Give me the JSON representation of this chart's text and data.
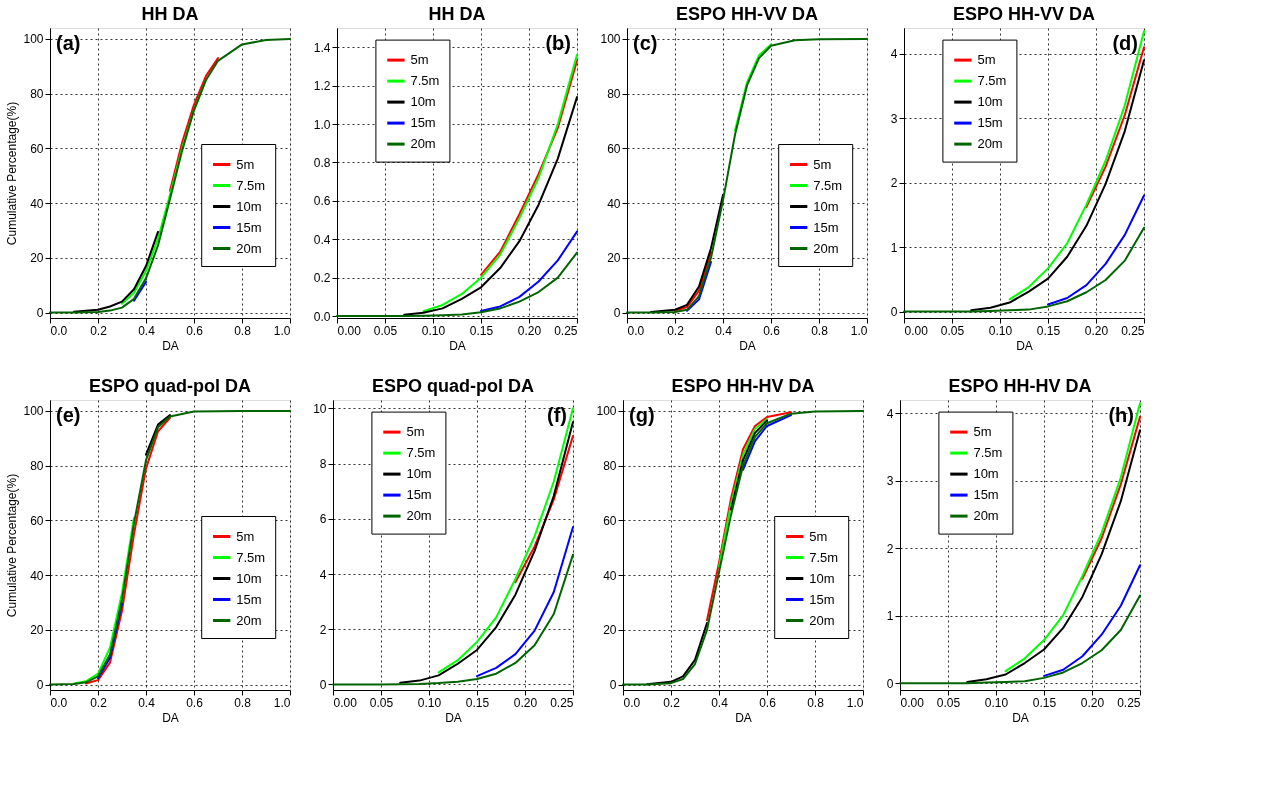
{
  "chart_data": [
    {
      "type": "line",
      "title": "HH DA",
      "xlabel": "DA",
      "ylabel": "Cumulative Percentage(%)",
      "annotations": [
        "(a)"
      ],
      "legend": "right",
      "grid": true,
      "xlim": [
        0,
        1
      ],
      "ylim": [
        -2,
        104
      ],
      "xticks": [
        {
          "value": 0,
          "label": "0.0"
        },
        0.2,
        0.4,
        0.6,
        0.8,
        {
          "value": 1,
          "label": "1.0"
        }
      ],
      "yticks": [
        0,
        20,
        40,
        60,
        80,
        100
      ],
      "x": [
        0,
        0.1,
        0.2,
        0.25,
        0.3,
        0.35,
        0.4,
        0.45,
        0.5,
        0.55,
        0.6,
        0.65,
        0.7,
        0.8,
        0.9,
        1.0
      ],
      "series": [
        {
          "name": "5m",
          "color": "#ff0000",
          "values": [
            null,
            null,
            null,
            null,
            null,
            null,
            null,
            null,
            44.5,
            62,
            76,
            86.5,
            93,
            null,
            null,
            null
          ]
        },
        {
          "name": "7.5m",
          "color": "#00ff00",
          "values": [
            null,
            null,
            null,
            null,
            3.2,
            7.2,
            15.2,
            27,
            43,
            60,
            74,
            85,
            null,
            null,
            null,
            null
          ]
        },
        {
          "name": "10m",
          "color": "#000000",
          "values": [
            null,
            0.3,
            1,
            2.2,
            4,
            8.5,
            17,
            29.5,
            null,
            null,
            null,
            null,
            null,
            null,
            null,
            null
          ]
        },
        {
          "name": "15m",
          "color": "#0000ff",
          "values": [
            null,
            null,
            null,
            null,
            null,
            4.3,
            11.2,
            null,
            null,
            null,
            null,
            null,
            null,
            null,
            null,
            null
          ]
        },
        {
          "name": "20m",
          "color": "#006400",
          "values": [
            0,
            0,
            0.2,
            0.7,
            1.8,
            5,
            12.5,
            24.5,
            41.5,
            59,
            74,
            85,
            92,
            98,
            99.6,
            100
          ]
        }
      ]
    },
    {
      "type": "line",
      "title": "HH DA",
      "xlabel": "DA",
      "annotations": [
        "(b)"
      ],
      "legend": "top left",
      "grid": true,
      "xlim": [
        0,
        0.25
      ],
      "ylim": [
        -0.01,
        1.5
      ],
      "xticks": [
        {
          "value": 0,
          "label": "0.00"
        },
        0.05,
        {
          "value": 0.1,
          "label": "0.10"
        },
        0.15,
        {
          "value": 0.2,
          "label": "0.20"
        },
        0.25
      ],
      "yticks": [
        {
          "value": 0,
          "label": "0.0"
        },
        0.2,
        0.4,
        0.6,
        0.8,
        {
          "value": 1,
          "label": "1.0"
        },
        1.2,
        1.4
      ],
      "x": [
        0,
        0.03,
        0.05,
        0.07,
        0.09,
        0.11,
        0.13,
        0.15,
        0.17,
        0.19,
        0.21,
        0.23,
        0.25
      ],
      "series": [
        {
          "name": "5m",
          "color": "#ff0000",
          "values": [
            null,
            null,
            null,
            null,
            null,
            null,
            null,
            0.215,
            0.335,
            0.53,
            0.74,
            0.98,
            1.33
          ]
        },
        {
          "name": "7.5m",
          "color": "#00ff00",
          "values": [
            null,
            null,
            null,
            null,
            0.025,
            0.058,
            0.115,
            0.2,
            0.32,
            0.51,
            0.72,
            1.0,
            1.36
          ]
        },
        {
          "name": "10m",
          "color": "#000000",
          "values": [
            null,
            null,
            null,
            0.007,
            0.017,
            0.04,
            0.09,
            0.15,
            0.25,
            0.39,
            0.58,
            0.82,
            1.14
          ]
        },
        {
          "name": "15m",
          "color": "#0000ff",
          "values": [
            null,
            null,
            null,
            null,
            null,
            null,
            null,
            0.026,
            0.05,
            0.1,
            0.18,
            0.29,
            0.44
          ]
        },
        {
          "name": "20m",
          "color": "#006400",
          "values": [
            0,
            0,
            0,
            0.001,
            0.002,
            0.004,
            0.008,
            0.02,
            0.04,
            0.075,
            0.125,
            0.2,
            0.33
          ]
        }
      ]
    },
    {
      "type": "line",
      "title": "ESPO HH-VV DA",
      "xlabel": "DA",
      "annotations": [
        "(c)"
      ],
      "legend": "right",
      "grid": true,
      "xlim": [
        0,
        1
      ],
      "ylim": [
        -2,
        104
      ],
      "xticks": [
        {
          "value": 0,
          "label": "0.0"
        },
        0.2,
        0.4,
        0.6,
        0.8,
        {
          "value": 1,
          "label": "1.0"
        }
      ],
      "yticks": [
        0,
        20,
        40,
        60,
        80,
        100
      ],
      "x": [
        0,
        0.1,
        0.2,
        0.25,
        0.3,
        0.35,
        0.4,
        0.45,
        0.5,
        0.55,
        0.6,
        0.7,
        0.8,
        1.0
      ],
      "series": [
        {
          "name": "5m",
          "color": "#ff0000",
          "values": [
            null,
            null,
            0.6,
            2,
            8,
            22,
            null,
            null,
            null,
            null,
            null,
            null,
            null,
            null
          ]
        },
        {
          "name": "7.5m",
          "color": "#00ff00",
          "values": [
            null,
            null,
            null,
            null,
            null,
            null,
            null,
            66.5,
            84,
            94,
            98,
            null,
            null,
            null
          ]
        },
        {
          "name": "10m",
          "color": "#000000",
          "values": [
            null,
            0.2,
            1,
            2.8,
            9.5,
            23.5,
            43,
            null,
            null,
            null,
            null,
            null,
            null,
            null
          ]
        },
        {
          "name": "15m",
          "color": "#0000ff",
          "values": [
            null,
            null,
            null,
            0.6,
            4.8,
            18.5,
            null,
            null,
            null,
            null,
            null,
            null,
            null,
            null
          ]
        },
        {
          "name": "20m",
          "color": "#006400",
          "values": [
            0,
            0,
            0.2,
            1,
            6,
            20,
            41,
            65,
            83,
            93,
            97.5,
            99.5,
            99.9,
            100
          ]
        }
      ]
    },
    {
      "type": "line",
      "title": "ESPO HH-VV DA",
      "xlabel": "DA",
      "annotations": [
        "(d)"
      ],
      "legend": "top left",
      "grid": true,
      "xlim": [
        0,
        0.25
      ],
      "ylim": [
        -0.1,
        4.4
      ],
      "xticks": [
        {
          "value": 0,
          "label": "0.00"
        },
        0.05,
        {
          "value": 0.1,
          "label": "0.10"
        },
        0.15,
        {
          "value": 0.2,
          "label": "0.20"
        },
        0.25
      ],
      "yticks": [
        0,
        1,
        2,
        3,
        4
      ],
      "x": [
        0,
        0.03,
        0.05,
        0.07,
        0.09,
        0.11,
        0.13,
        0.15,
        0.17,
        0.19,
        0.21,
        0.23,
        0.25
      ],
      "series": [
        {
          "name": "5m",
          "color": "#ff0000",
          "values": [
            null,
            null,
            null,
            null,
            null,
            null,
            null,
            null,
            null,
            1.62,
            2.25,
            3.05,
            4.1
          ]
        },
        {
          "name": "7.5m",
          "color": "#00ff00",
          "values": [
            null,
            null,
            null,
            null,
            null,
            0.19,
            0.38,
            0.67,
            1.06,
            1.66,
            2.34,
            3.2,
            4.35
          ]
        },
        {
          "name": "10m",
          "color": "#000000",
          "values": [
            null,
            null,
            null,
            0.02,
            0.06,
            0.14,
            0.31,
            0.51,
            0.85,
            1.33,
            1.98,
            2.8,
            3.9
          ]
        },
        {
          "name": "15m",
          "color": "#0000ff",
          "values": [
            null,
            null,
            null,
            null,
            null,
            null,
            null,
            0.11,
            0.21,
            0.41,
            0.74,
            1.19,
            1.8
          ]
        },
        {
          "name": "20m",
          "color": "#006400",
          "values": [
            0,
            0,
            0,
            0,
            0.01,
            0.02,
            0.03,
            0.08,
            0.16,
            0.3,
            0.49,
            0.79,
            1.3
          ]
        }
      ]
    },
    {
      "type": "line",
      "title": "ESPO quad-pol DA",
      "xlabel": "DA",
      "ylabel": "Cumulative Percentage(%)",
      "annotations": [
        "(e)"
      ],
      "legend": "right",
      "grid": true,
      "xlim": [
        0,
        1
      ],
      "ylim": [
        -2,
        104
      ],
      "xticks": [
        {
          "value": 0,
          "label": "0.0"
        },
        0.2,
        0.4,
        0.6,
        0.8,
        {
          "value": 1,
          "label": "1.0"
        }
      ],
      "yticks": [
        0,
        20,
        40,
        60,
        80,
        100
      ],
      "x": [
        0,
        0.1,
        0.15,
        0.2,
        0.25,
        0.3,
        0.35,
        0.4,
        0.45,
        0.5,
        0.6,
        0.8,
        1.0
      ],
      "series": [
        {
          "name": "5m",
          "color": "#ff0000",
          "values": [
            null,
            null,
            0.4,
            1.6,
            8,
            27,
            55,
            79,
            92.5,
            97.5,
            null,
            null,
            null
          ]
        },
        {
          "name": "7.5m",
          "color": "#00ff00",
          "values": [
            null,
            0.4,
            1.2,
            4,
            13.5,
            33.5,
            61,
            null,
            null,
            null,
            null,
            null,
            null
          ]
        },
        {
          "name": "10m",
          "color": "#000000",
          "values": [
            null,
            null,
            null,
            null,
            null,
            null,
            null,
            84,
            95,
            98.5,
            null,
            null,
            null
          ]
        },
        {
          "name": "15m",
          "color": "#0000ff",
          "values": [
            null,
            null,
            null,
            2.3,
            9.8,
            29.5,
            null,
            null,
            null,
            null,
            null,
            null,
            null
          ]
        },
        {
          "name": "20m",
          "color": "#006400",
          "values": [
            0,
            0.2,
            0.8,
            3,
            11,
            31,
            59,
            82,
            94,
            98,
            99.8,
            100,
            100
          ]
        }
      ]
    },
    {
      "type": "line",
      "title": "ESPO quad-pol DA",
      "xlabel": "DA",
      "annotations": [
        "(f)"
      ],
      "legend": "top left",
      "grid": true,
      "xlim": [
        0,
        0.25
      ],
      "ylim": [
        -0.2,
        10.3
      ],
      "xticks": [
        {
          "value": 0,
          "label": "0.00"
        },
        0.05,
        {
          "value": 0.1,
          "label": "0.10"
        },
        0.15,
        {
          "value": 0.2,
          "label": "0.20"
        },
        0.25
      ],
      "yticks": [
        0,
        2,
        4,
        6,
        8,
        10
      ],
      "x": [
        0,
        0.03,
        0.05,
        0.07,
        0.09,
        0.11,
        0.13,
        0.15,
        0.17,
        0.19,
        0.21,
        0.23,
        0.25
      ],
      "series": [
        {
          "name": "5m",
          "color": "#ff0000",
          "values": [
            null,
            null,
            null,
            null,
            null,
            null,
            null,
            null,
            null,
            3.7,
            5.0,
            6.7,
            9.0
          ]
        },
        {
          "name": "7.5m",
          "color": "#00ff00",
          "values": [
            null,
            null,
            null,
            null,
            null,
            0.44,
            0.88,
            1.54,
            2.43,
            3.82,
            5.37,
            7.35,
            10
          ]
        },
        {
          "name": "10m",
          "color": "#000000",
          "values": [
            null,
            null,
            null,
            0.06,
            0.14,
            0.33,
            0.75,
            1.25,
            2.08,
            3.25,
            4.84,
            6.83,
            9.5
          ]
        },
        {
          "name": "15m",
          "color": "#0000ff",
          "values": [
            null,
            null,
            null,
            null,
            null,
            null,
            null,
            0.3,
            0.6,
            1.1,
            1.95,
            3.35,
            5.7
          ]
        },
        {
          "name": "20m",
          "color": "#006400",
          "values": [
            0,
            0,
            0,
            0.01,
            0.02,
            0.05,
            0.1,
            0.2,
            0.39,
            0.78,
            1.42,
            2.55,
            4.7
          ]
        }
      ]
    },
    {
      "type": "line",
      "title": "ESPO HH-HV DA",
      "xlabel": "DA",
      "annotations": [
        "(g)"
      ],
      "legend": "bottom right",
      "grid": true,
      "xlim": [
        0,
        1
      ],
      "ylim": [
        -2,
        104
      ],
      "xticks": [
        {
          "value": 0,
          "label": "0.0"
        },
        0.2,
        0.4,
        0.6,
        0.8,
        {
          "value": 1,
          "label": "1.0"
        }
      ],
      "yticks": [
        0,
        20,
        40,
        60,
        80,
        100
      ],
      "x": [
        0,
        0.1,
        0.2,
        0.25,
        0.3,
        0.35,
        0.4,
        0.45,
        0.5,
        0.55,
        0.6,
        0.7,
        0.8,
        1.0
      ],
      "series": [
        {
          "name": "5m",
          "color": "#ff0000",
          "values": [
            null,
            null,
            null,
            null,
            null,
            23.5,
            44.5,
            68,
            86,
            94.5,
            97.8,
            99.5,
            null,
            null
          ]
        },
        {
          "name": "7.5m",
          "color": "#00ff00",
          "values": [
            null,
            null,
            null,
            null,
            null,
            null,
            43,
            66,
            84,
            93.5,
            97,
            null,
            null,
            null
          ]
        },
        {
          "name": "10m",
          "color": "#000000",
          "values": [
            null,
            0.1,
            1,
            3,
            9,
            22.5,
            null,
            64,
            82,
            92,
            96.5,
            null,
            null,
            null
          ]
        },
        {
          "name": "15m",
          "color": "#0000ff",
          "values": [
            null,
            null,
            null,
            null,
            null,
            null,
            null,
            null,
            78.5,
            89,
            94.5,
            98.5,
            null,
            null
          ]
        },
        {
          "name": "20m",
          "color": "#006400",
          "values": [
            0,
            0,
            0.5,
            2,
            7.5,
            20,
            41,
            62,
            80,
            90.5,
            95.5,
            99,
            99.8,
            100
          ]
        }
      ]
    },
    {
      "type": "line",
      "title": "ESPO HH-HV DA",
      "xlabel": "DA",
      "annotations": [
        "(h)"
      ],
      "legend": "top left",
      "grid": true,
      "xlim": [
        0,
        0.25
      ],
      "ylim": [
        -0.1,
        4.2
      ],
      "xticks": [
        {
          "value": 0,
          "label": "0.00"
        },
        0.05,
        {
          "value": 0.1,
          "label": "0.10"
        },
        0.15,
        {
          "value": 0.2,
          "label": "0.20"
        },
        0.25
      ],
      "yticks": [
        0,
        1,
        2,
        3,
        4
      ],
      "x": [
        0,
        0.03,
        0.05,
        0.07,
        0.09,
        0.11,
        0.13,
        0.15,
        0.17,
        0.19,
        0.21,
        0.23,
        0.25
      ],
      "series": [
        {
          "name": "5m",
          "color": "#ff0000",
          "values": [
            null,
            null,
            null,
            null,
            null,
            null,
            null,
            null,
            null,
            1.55,
            2.15,
            2.95,
            3.95
          ]
        },
        {
          "name": "7.5m",
          "color": "#00ff00",
          "values": [
            null,
            null,
            null,
            null,
            null,
            0.18,
            0.37,
            0.64,
            1.01,
            1.59,
            2.23,
            3.05,
            4.15
          ]
        },
        {
          "name": "10m",
          "color": "#000000",
          "values": [
            null,
            null,
            null,
            0.02,
            0.06,
            0.13,
            0.3,
            0.5,
            0.82,
            1.28,
            1.91,
            2.7,
            3.75
          ]
        },
        {
          "name": "15m",
          "color": "#0000ff",
          "values": [
            null,
            null,
            null,
            null,
            null,
            null,
            null,
            0.11,
            0.2,
            0.4,
            0.72,
            1.15,
            1.75
          ]
        },
        {
          "name": "20m",
          "color": "#006400",
          "values": [
            0,
            0,
            0,
            0,
            0.01,
            0.02,
            0.03,
            0.08,
            0.16,
            0.3,
            0.49,
            0.79,
            1.3
          ]
        }
      ]
    }
  ]
}
